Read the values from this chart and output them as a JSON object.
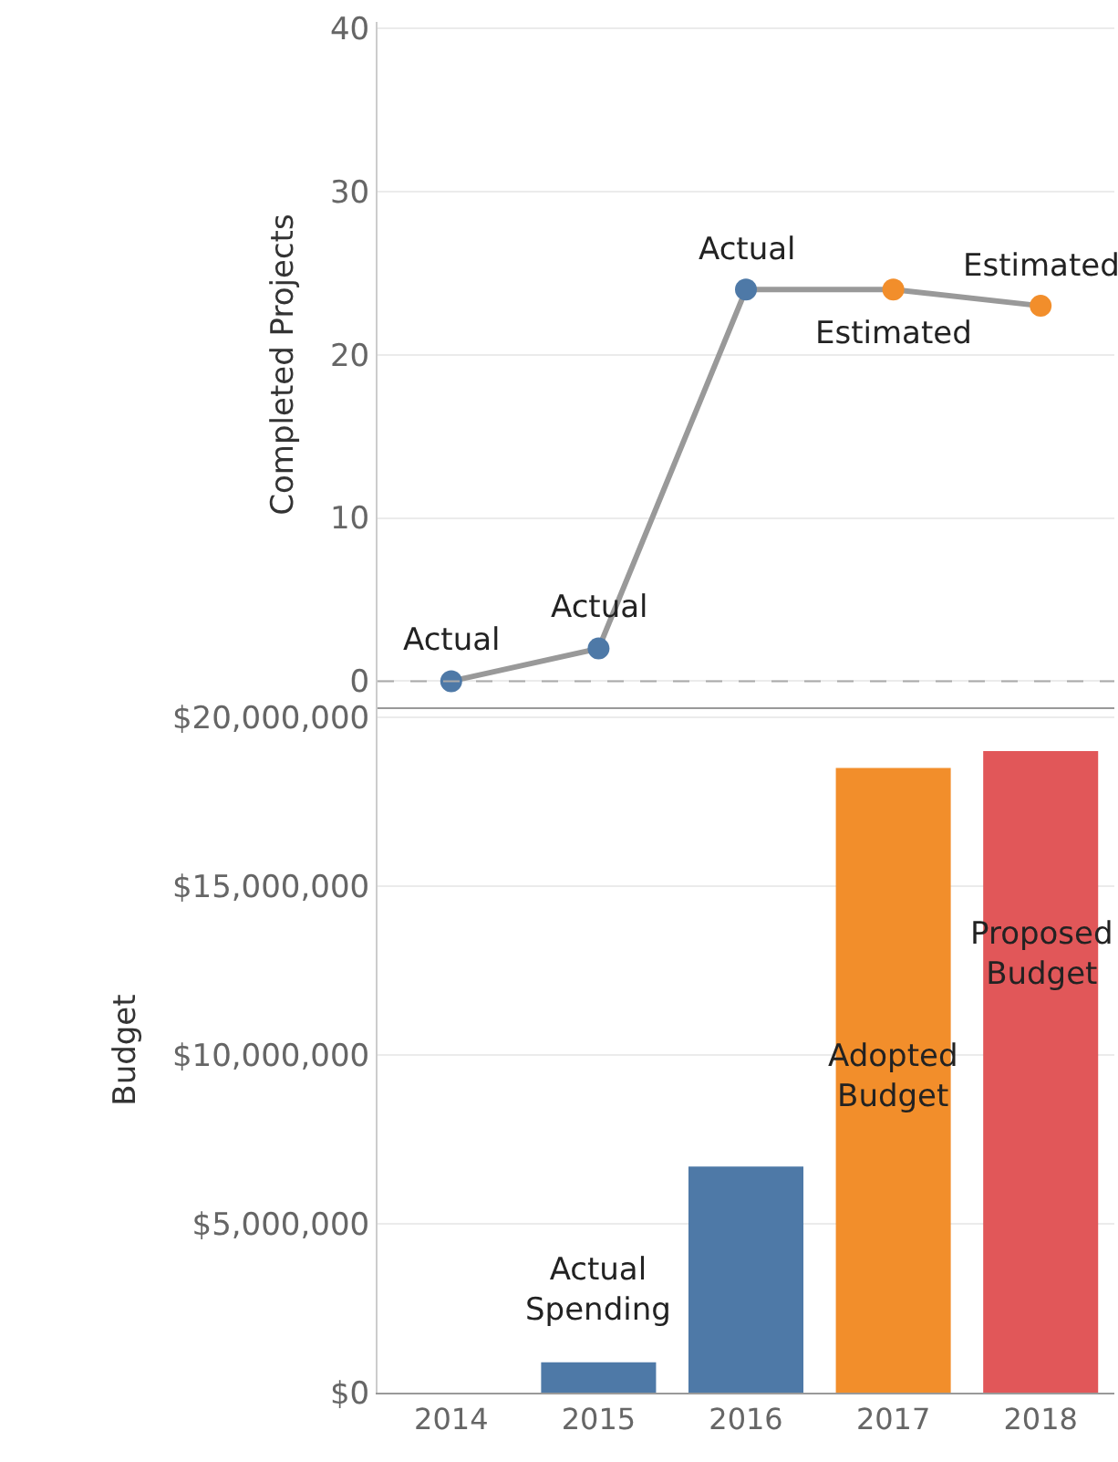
{
  "chart_data": [
    {
      "type": "line",
      "ylabel": "Completed Projects",
      "categories": [
        "2014",
        "2015",
        "2016",
        "2017",
        "2018"
      ],
      "series": [
        {
          "color": "#999999",
          "values": [
            0,
            2,
            24,
            24,
            23
          ],
          "colors": [
            "#4e79a7",
            "#4e79a7",
            "#4e79a7",
            "#f28e2b",
            "#f28e2b"
          ]
        }
      ],
      "marker": "circle",
      "line_style": "solid",
      "ylim": [
        -1.6,
        40.4
      ],
      "yticks": [
        0,
        10,
        20,
        30,
        40
      ],
      "grid": "y",
      "tick_labels": "y",
      "ref_lines": [
        {
          "axis": "y",
          "value": 0,
          "color": "#aaaaaa",
          "line_style": "dashed"
        }
      ],
      "annotations": [
        {
          "text": "Actual",
          "x": "2014",
          "y": 0
        },
        {
          "text": "Actual",
          "x": "2015",
          "y": 2
        },
        {
          "text": "Actual",
          "x": "2016",
          "y": 24
        },
        {
          "text": "Estimated",
          "x": "2017",
          "y": 24
        },
        {
          "text": "Estimated",
          "x": "2018",
          "y": 23
        }
      ]
    },
    {
      "type": "bar",
      "ylabel": "Budget",
      "categories": [
        "2014",
        "2015",
        "2016",
        "2017",
        "2018"
      ],
      "values": [
        null,
        900000,
        6700000,
        18500000,
        19000000
      ],
      "colors": [
        "#4e79a7",
        "#4e79a7",
        "#4e79a7",
        "#f28e2b",
        "#e15759"
      ],
      "ylim": [
        0,
        20300000
      ],
      "yticks": [
        {
          "value": 0,
          "label": "$0"
        },
        {
          "value": 5000000,
          "label": "$5,000,000"
        },
        {
          "value": 10000000,
          "label": "$10,000,000"
        },
        {
          "value": 15000000,
          "label": "$15,000,000"
        },
        {
          "value": 20000000,
          "label": "$20,000,000"
        }
      ],
      "grid": "y",
      "annotations": [
        "Actual Spending",
        "Adopted Budget",
        "Proposed Budget"
      ]
    }
  ]
}
